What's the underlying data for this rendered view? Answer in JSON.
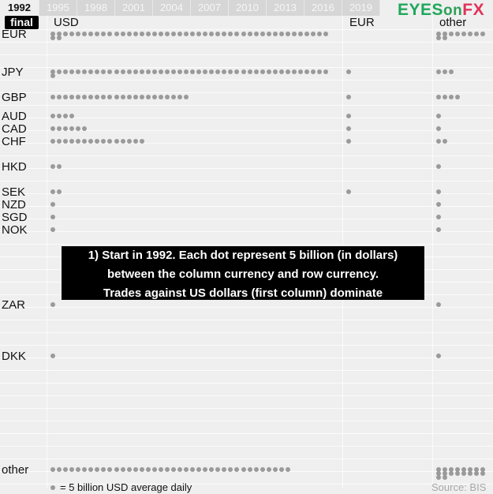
{
  "timeline": {
    "years": [
      "1992",
      "1995",
      "1998",
      "2001",
      "2004",
      "2007",
      "2010",
      "2013",
      "2016",
      "2019"
    ],
    "active": "1992",
    "final_label": "final"
  },
  "logo": {
    "eyes": "EYES",
    "on": "on",
    "fx": "FX"
  },
  "annotation": {
    "lines": [
      "1) Start in 1992. Each dot represent 5 billion (in dollars)",
      "between the column currency and row currency.",
      "Trades against US dollars (first column) dominate"
    ]
  },
  "legend": {
    "text": "= 5 billion USD average daily"
  },
  "source": "Source: BIS",
  "chart_data": {
    "type": "table",
    "title": "",
    "unit": "dots; each dot = 5 billion USD average daily",
    "columns": [
      "USD",
      "EUR",
      "other"
    ],
    "rows": [
      {
        "label": "EUR",
        "values": {
          "USD": 46,
          "EUR": 0,
          "other": 10
        }
      },
      {
        "label": "JPY",
        "values": {
          "USD": 45,
          "EUR": 1,
          "other": 3
        }
      },
      {
        "label": "GBP",
        "values": {
          "USD": 22,
          "EUR": 1,
          "other": 4
        }
      },
      {
        "label": "AUD",
        "values": {
          "USD": 4,
          "EUR": 1,
          "other": 1
        }
      },
      {
        "label": "CAD",
        "values": {
          "USD": 6,
          "EUR": 1,
          "other": 1
        }
      },
      {
        "label": "CHF",
        "values": {
          "USD": 15,
          "EUR": 1,
          "other": 2
        }
      },
      {
        "label": "HKD",
        "values": {
          "USD": 2,
          "EUR": 0,
          "other": 1
        }
      },
      {
        "label": "SEK",
        "values": {
          "USD": 2,
          "EUR": 1,
          "other": 1
        }
      },
      {
        "label": "NZD",
        "values": {
          "USD": 1,
          "EUR": 0,
          "other": 1
        }
      },
      {
        "label": "SGD",
        "values": {
          "USD": 1,
          "EUR": 0,
          "other": 1
        }
      },
      {
        "label": "NOK",
        "values": {
          "USD": 1,
          "EUR": 0,
          "other": 1
        }
      },
      {
        "label": "ZAR",
        "values": {
          "USD": 1,
          "EUR": 0,
          "other": 1
        }
      },
      {
        "label": "DKK",
        "values": {
          "USD": 1,
          "EUR": 0,
          "other": 1
        }
      },
      {
        "label": "other",
        "values": {
          "USD": 38,
          "EUR": 0,
          "other": 18
        }
      }
    ]
  }
}
